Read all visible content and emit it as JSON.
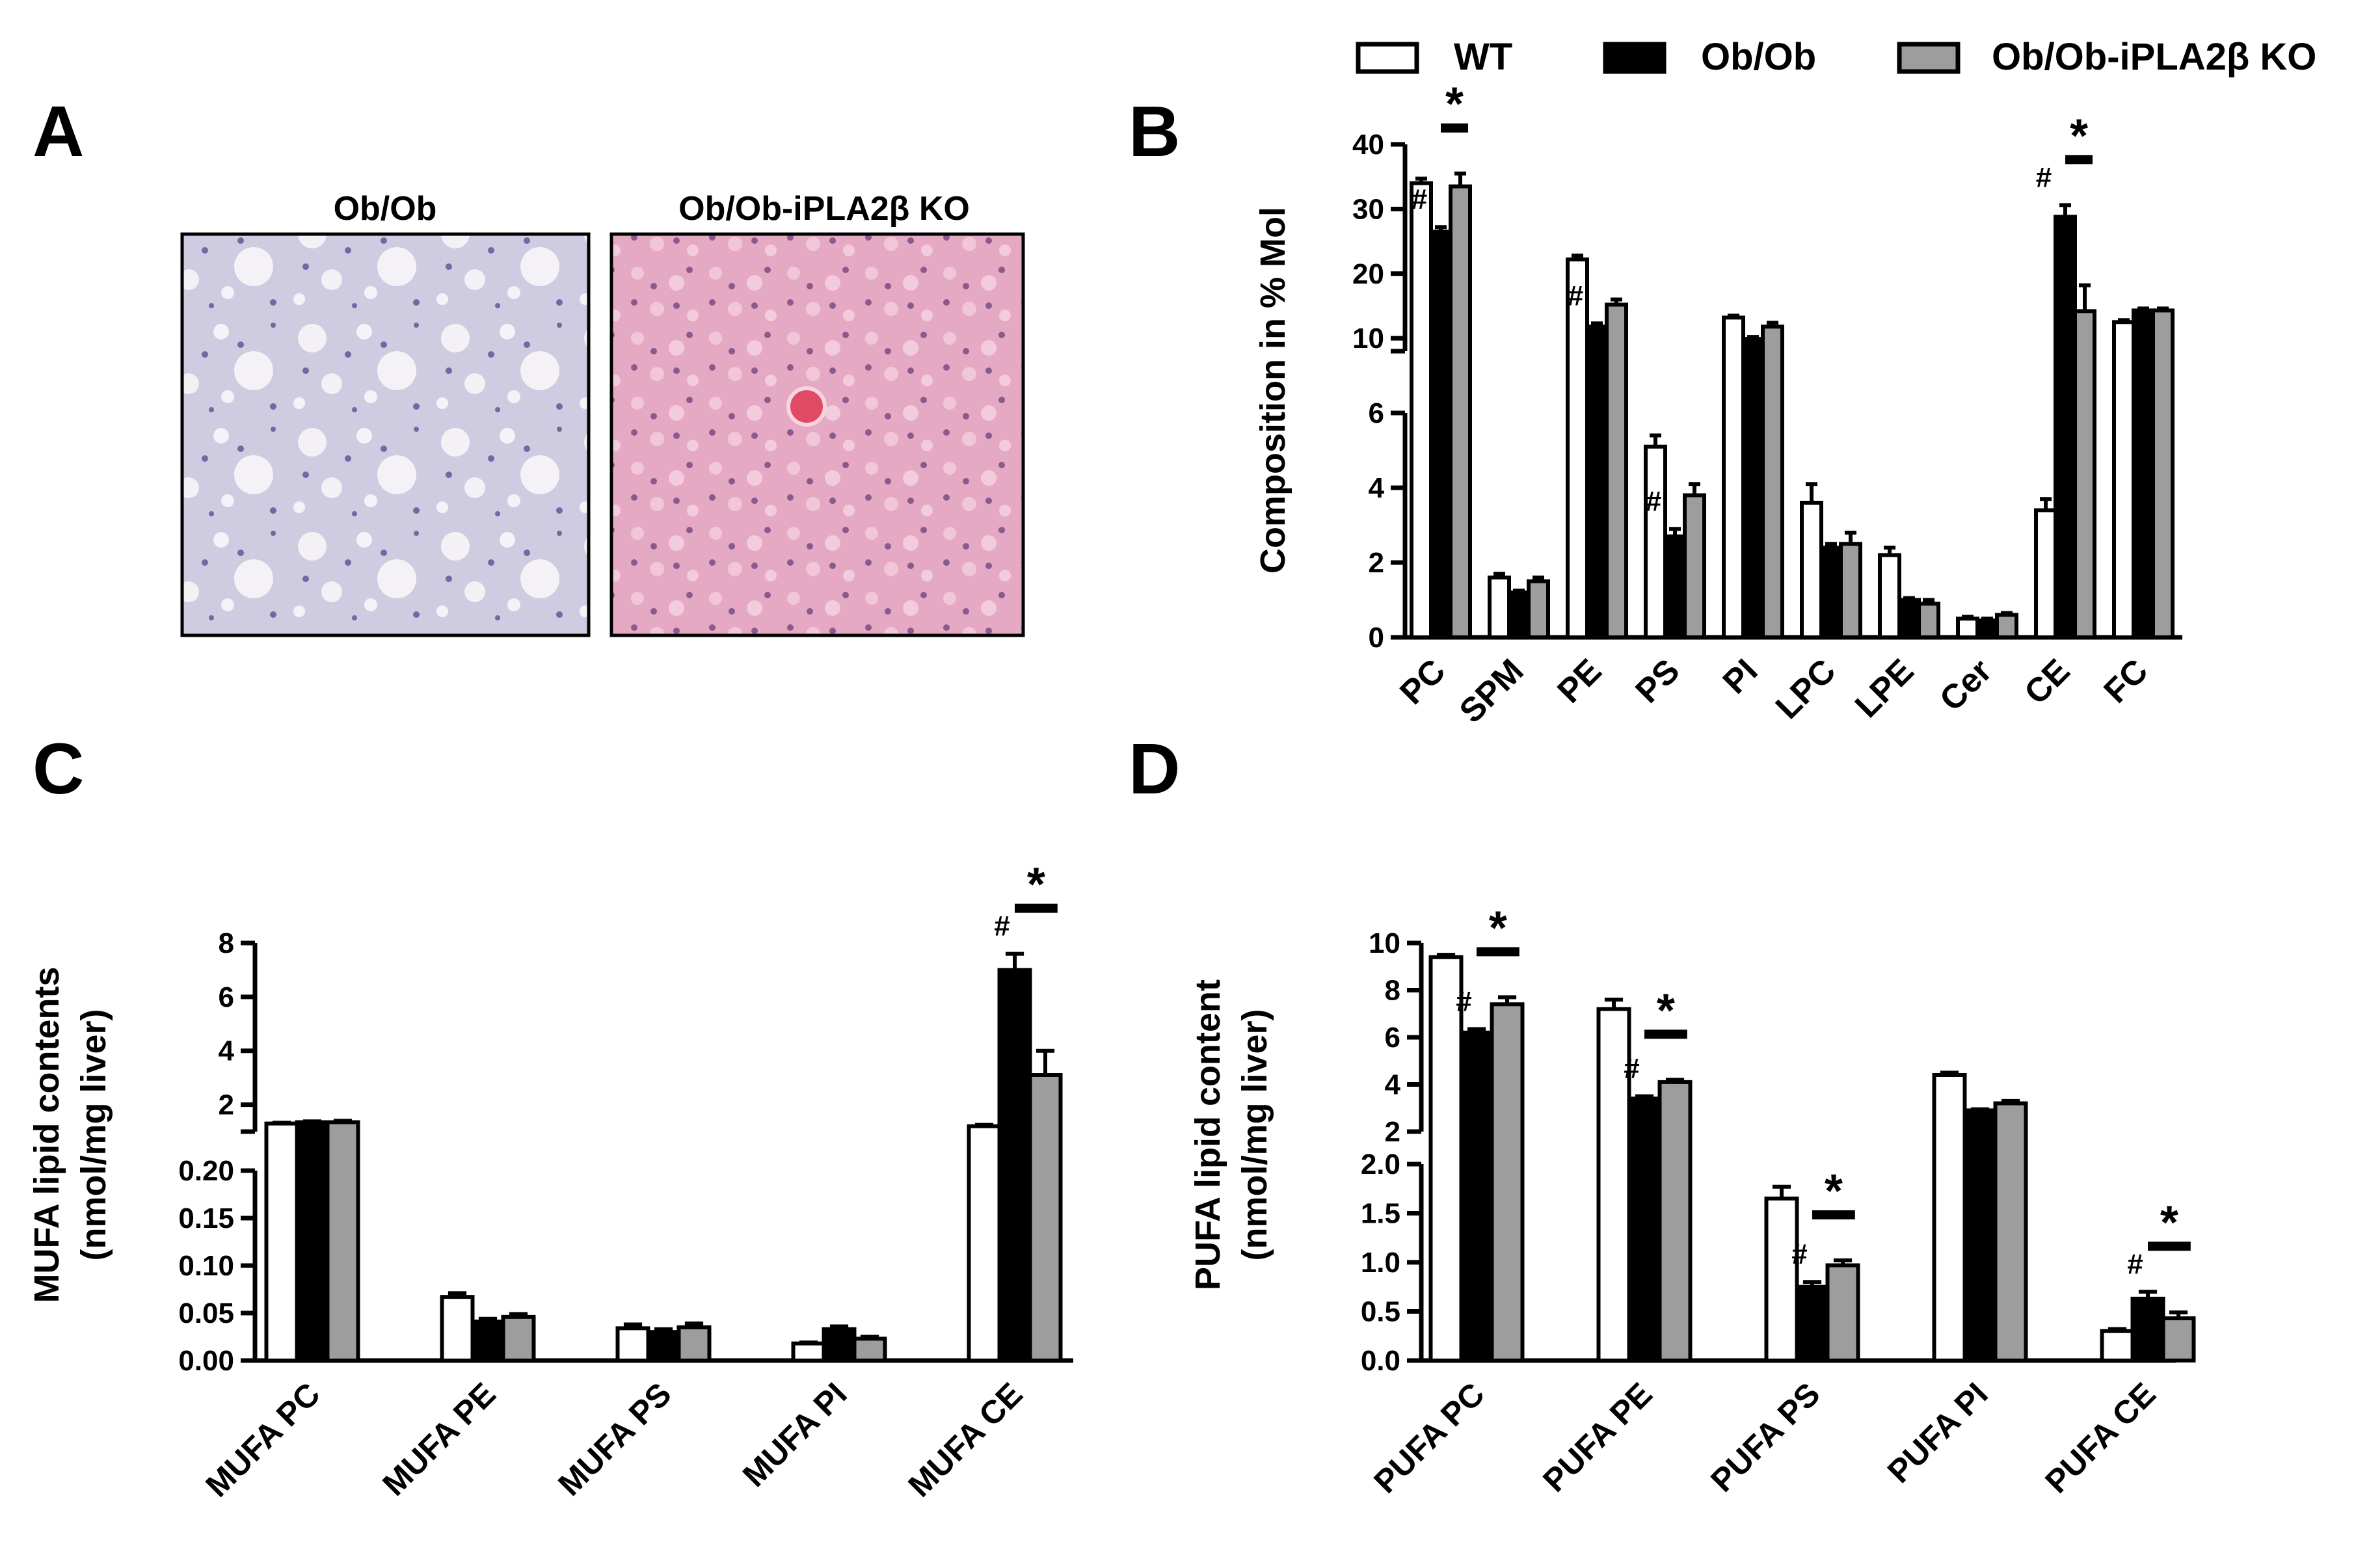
{
  "panel_labels": {
    "A": "A",
    "B": "B",
    "C": "C",
    "D": "D"
  },
  "legend": [
    {
      "name": "WT",
      "color": "#ffffff"
    },
    {
      "name": "Ob/Ob",
      "color": "#000000"
    },
    {
      "name": "Ob/Ob-iPLA2β KO",
      "color": "#9d9d9d"
    }
  ],
  "panel_a": {
    "left_title": "Ob/Ob",
    "right_title": "Ob/Ob-iPLA2β KO"
  },
  "chart_data": [
    {
      "panel": "B",
      "type": "bar",
      "ylabel": "Composition in % Mol",
      "categories": [
        "PC",
        "SPM",
        "PE",
        "PS",
        "PI",
        "LPC",
        "LPE",
        "Cer",
        "CE",
        "FC"
      ],
      "series": [
        {
          "name": "WT",
          "values": [
            34,
            1.6,
            22.2,
            5.1,
            13.2,
            3.6,
            2.2,
            0.5,
            3.4,
            12.5
          ],
          "errors": [
            0.7,
            0.1,
            0.6,
            0.3,
            0.3,
            0.5,
            0.2,
            0.05,
            0.3,
            0.3
          ]
        },
        {
          "name": "Ob/Ob",
          "values": [
            26.5,
            1.2,
            11.8,
            2.7,
            9.9,
            2.4,
            1.0,
            0.45,
            28.8,
            14.3
          ],
          "errors": [
            0.7,
            0.05,
            0.5,
            0.2,
            0.3,
            0.1,
            0.05,
            0.05,
            1.8,
            0.3
          ]
        },
        {
          "name": "Ob/Ob-iPLA2β KO",
          "values": [
            33.5,
            1.5,
            15.2,
            3.8,
            11.8,
            2.5,
            0.9,
            0.6,
            14.2,
            14.3
          ],
          "errors": [
            2.0,
            0.1,
            0.8,
            0.3,
            0.6,
            0.3,
            0.1,
            0.05,
            4.0,
            0.3
          ]
        }
      ],
      "yticks": [
        "0",
        "2",
        "4",
        "6",
        "10",
        "20",
        "30",
        "40"
      ],
      "annotations": {
        "hash_categories": [
          "PC",
          "PE",
          "PS",
          "CE"
        ],
        "star_categories": [
          "PC",
          "CE"
        ],
        "hash": "#",
        "star": "*"
      }
    },
    {
      "panel": "C",
      "type": "bar",
      "ylabel": "MUFA lipid contents\n(nmol/mg liver)",
      "categories": [
        "MUFA PC",
        "MUFA PE",
        "MUFA PS",
        "MUFA PI",
        "MUFA CE"
      ],
      "series": [
        {
          "name": "WT",
          "values": [
            1.3,
            0.067,
            0.034,
            0.018,
            1.2
          ],
          "errors": [
            0.03,
            0.004,
            0.004,
            0.001,
            0.05
          ]
        },
        {
          "name": "Ob/Ob",
          "values": [
            1.35,
            0.041,
            0.03,
            0.033,
            7.0
          ],
          "errors": [
            0.03,
            0.003,
            0.003,
            0.003,
            0.6
          ]
        },
        {
          "name": "Ob/Ob-iPLA2β KO",
          "values": [
            1.35,
            0.046,
            0.035,
            0.023,
            3.1
          ],
          "errors": [
            0.05,
            0.003,
            0.004,
            0.002,
            0.9
          ]
        }
      ],
      "yticks": [
        "0.00",
        "0.05",
        "0.10",
        "0.15",
        "0.20",
        "2",
        "4",
        "6",
        "8"
      ],
      "annotations": {
        "hash_categories": [
          "MUFA CE"
        ],
        "star_categories": [
          "MUFA CE"
        ],
        "hash": "#",
        "star": "*"
      }
    },
    {
      "panel": "D",
      "type": "bar",
      "ylabel": "PUFA lipid content\n(nmol/mg liver)",
      "categories": [
        "PUFA PC",
        "PUFA PE",
        "PUFA PS",
        "PUFA PI",
        "PUFA CE"
      ],
      "series": [
        {
          "name": "WT",
          "values": [
            9.4,
            7.2,
            1.65,
            4.4,
            0.3
          ],
          "errors": [
            0.1,
            0.4,
            0.12,
            0.1,
            0.02
          ]
        },
        {
          "name": "Ob/Ob",
          "values": [
            6.2,
            3.4,
            0.75,
            2.9,
            0.63
          ],
          "errors": [
            0.15,
            0.1,
            0.05,
            0.05,
            0.07
          ]
        },
        {
          "name": "Ob/Ob-iPLA2β KO",
          "values": [
            7.4,
            4.1,
            0.97,
            3.2,
            0.43
          ],
          "errors": [
            0.3,
            0.1,
            0.05,
            0.1,
            0.06
          ]
        }
      ],
      "yticks": [
        "0.0",
        "0.5",
        "1.0",
        "1.5",
        "2.0",
        "2",
        "4",
        "6",
        "8",
        "10"
      ],
      "annotations": {
        "hash_categories": [
          "PUFA PC",
          "PUFA PE",
          "PUFA PS",
          "PUFA CE"
        ],
        "star_categories": [
          "PUFA PC",
          "PUFA PE",
          "PUFA PS",
          "PUFA CE"
        ],
        "hash": "#",
        "star": "*"
      }
    }
  ]
}
